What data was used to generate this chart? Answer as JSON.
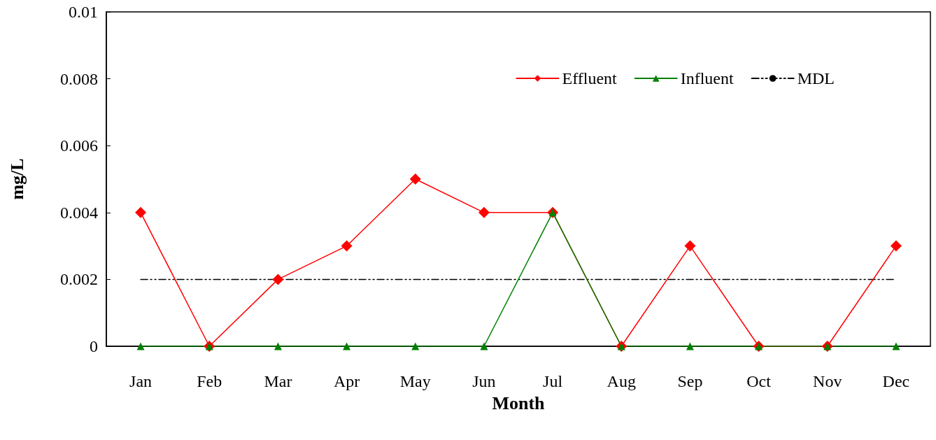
{
  "chart_data": {
    "type": "line",
    "xlabel": "Month",
    "ylabel": "mg/L",
    "categories": [
      "Jan",
      "Feb",
      "Mar",
      "Apr",
      "May",
      "Jun",
      "Jul",
      "Aug",
      "Sep",
      "Oct",
      "Nov",
      "Dec"
    ],
    "series": [
      {
        "name": "Effluent",
        "color": "#ff0000",
        "marker": "diamond",
        "line_style": "solid",
        "values": [
          0.004,
          0,
          0.002,
          0.003,
          0.005,
          0.004,
          0.004,
          0,
          0.003,
          0,
          0,
          0.003
        ]
      },
      {
        "name": "Influent",
        "color": "#008000",
        "marker": "triangle",
        "line_style": "solid",
        "values": [
          0,
          0,
          0,
          0,
          0,
          0,
          0.004,
          0,
          0,
          0,
          0,
          0
        ]
      },
      {
        "name": "MDL",
        "color": "#000000",
        "marker": "none",
        "line_style": "dashed",
        "values": [
          0.002,
          0.002,
          0.002,
          0.002,
          0.002,
          0.002,
          0.002,
          0.002,
          0.002,
          0.002,
          0.002,
          0.002
        ]
      }
    ],
    "ylim": [
      0,
      0.01
    ],
    "yticks": [
      0,
      0.002,
      0.004,
      0.006,
      0.008,
      0.01
    ],
    "grid": false,
    "legend": "top right"
  }
}
